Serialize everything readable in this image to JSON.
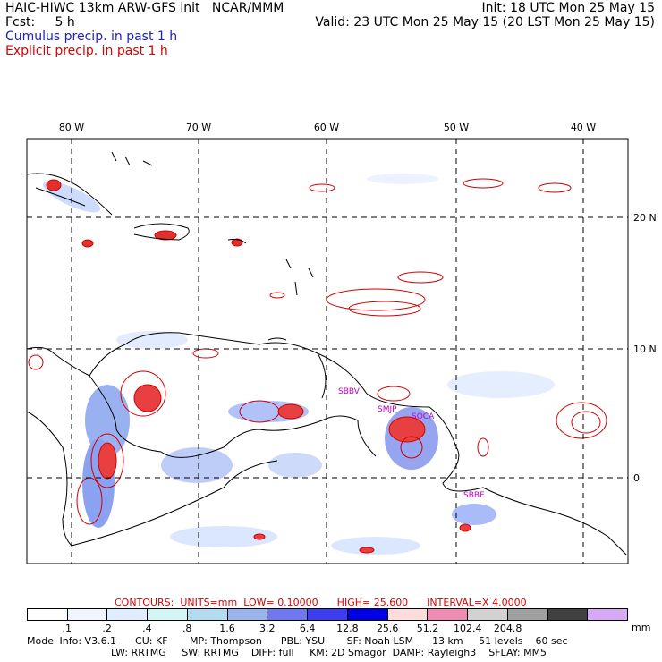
{
  "header": {
    "model_title": "HAIC-HIWC 13km ARW-GFS init",
    "org": "NCAR/MMM",
    "init": "Init: 18 UTC Mon 25 May 15",
    "fcst_label": "Fcst:",
    "fcst_value": "5 h",
    "valid": "Valid: 23 UTC Mon 25 May 15 (20 LST Mon 25 May 15)",
    "cumulus": "Cumulus precip. in past 1 h",
    "explicit": "Explicit precip. in past 1 h"
  },
  "map": {
    "lon_labels": [
      "80 W",
      "70 W",
      "60 W",
      "50 W",
      "40 W"
    ],
    "lat_labels": [
      "20 N",
      "10 N",
      "0"
    ],
    "station_labels": [
      "SBBV",
      "SMJP",
      "SOCA",
      "SBBE"
    ],
    "colors": {
      "contour": "#d00000",
      "station": "#c000c0",
      "grid": "#000000"
    }
  },
  "contours_line": {
    "contours": "CONTOURS:",
    "units": "UNITS=mm",
    "low": "LOW= 0.10000",
    "high": "HIGH= 25.600",
    "interval": "INTERVAL=X 4.0000"
  },
  "legend": {
    "colors": [
      "#ffffff",
      "#f0f6ff",
      "#e0ecff",
      "#d2f6f6",
      "#b4dcf0",
      "#9ab4f0",
      "#7078f0",
      "#3c3cf0",
      "#0000e6",
      "#ffdcdc",
      "#f08cb4",
      "#d2d2d2",
      "#a0a0a0",
      "#404040",
      "#d8a8f8"
    ],
    "labels": [
      ".1",
      ".2",
      ".4",
      ".8",
      "1.6",
      "3.2",
      "6.4",
      "12.8",
      "25.6",
      "51.2",
      "102.4",
      "204.8"
    ],
    "unit": "mm"
  },
  "footer": {
    "line1": [
      "Model Info: V3.6.1",
      "CU: KF",
      "MP: Thompson",
      "PBL: YSU",
      "SF: Noah LSM",
      "13 km",
      "51 levels",
      "60 sec"
    ],
    "line2": [
      "LW: RRTMG",
      "SW: RRTMG",
      "DIFF: full",
      "KM: 2D Smagor",
      "DAMP: Rayleigh3",
      "SFLAY: MM5"
    ]
  }
}
